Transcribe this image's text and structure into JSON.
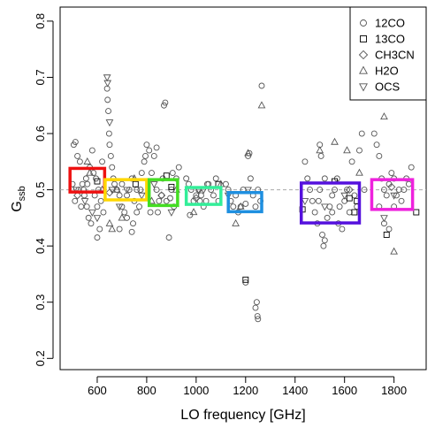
{
  "chart_data": {
    "type": "scatter",
    "xlabel": "LO frequency [GHz]",
    "ylabel_main": "G",
    "ylabel_sub": "ssb",
    "xlim": [
      450,
      1930
    ],
    "ylim": [
      0.18,
      0.825
    ],
    "x_ticks": [
      600,
      800,
      1000,
      1200,
      1400,
      1600,
      1800
    ],
    "y_ticks": [
      0.2,
      0.3,
      0.4,
      0.5,
      0.6,
      0.7,
      0.8
    ],
    "reference_line": 0.5,
    "legend_position": "top-right",
    "legend": [
      {
        "label": "12CO",
        "marker": "circle"
      },
      {
        "label": "13CO",
        "marker": "square"
      },
      {
        "label": "CH3CN",
        "marker": "diamond"
      },
      {
        "label": "H2O",
        "marker": "triangle-up"
      },
      {
        "label": "OCS",
        "marker": "triangle-down"
      }
    ],
    "band_boxes": [
      {
        "color": "#ee1111",
        "x": [
          490,
          630
        ],
        "y": [
          0.496,
          0.538
        ]
      },
      {
        "color": "#ffd700",
        "x": [
          632,
          800
        ],
        "y": [
          0.482,
          0.518
        ]
      },
      {
        "color": "#44dd22",
        "x": [
          810,
          925
        ],
        "y": [
          0.472,
          0.518
        ]
      },
      {
        "color": "#33ee99",
        "x": [
          960,
          1100
        ],
        "y": [
          0.474,
          0.504
        ]
      },
      {
        "color": "#1e8fe0",
        "x": [
          1130,
          1265
        ],
        "y": [
          0.461,
          0.495
        ]
      },
      {
        "color": "#5511dd",
        "x": [
          1425,
          1660
        ],
        "y": [
          0.441,
          0.512
        ]
      },
      {
        "color": "#ee22dd",
        "x": [
          1710,
          1875
        ],
        "y": [
          0.465,
          0.518
        ]
      }
    ],
    "series": [
      {
        "name": "12CO",
        "marker": "circle",
        "points": [
          [
            505,
            0.58
          ],
          [
            512,
            0.585
          ],
          [
            520,
            0.56
          ],
          [
            530,
            0.55
          ],
          [
            540,
            0.51
          ],
          [
            548,
            0.49
          ],
          [
            558,
            0.47
          ],
          [
            565,
            0.45
          ],
          [
            575,
            0.44
          ],
          [
            585,
            0.53
          ],
          [
            595,
            0.52
          ],
          [
            605,
            0.5
          ],
          [
            615,
            0.48
          ],
          [
            625,
            0.46
          ],
          [
            545,
            0.5
          ],
          [
            555,
            0.52
          ],
          [
            570,
            0.54
          ],
          [
            580,
            0.57
          ],
          [
            590,
            0.49
          ],
          [
            600,
            0.47
          ],
          [
            610,
            0.43
          ],
          [
            620,
            0.55
          ],
          [
            500,
            0.51
          ],
          [
            510,
            0.48
          ],
          [
            525,
            0.5
          ],
          [
            535,
            0.47
          ],
          [
            560,
            0.51
          ],
          [
            600,
            0.415
          ],
          [
            640,
            0.68
          ],
          [
            642,
            0.66
          ],
          [
            645,
            0.64
          ],
          [
            648,
            0.6
          ],
          [
            650,
            0.58
          ],
          [
            655,
            0.56
          ],
          [
            660,
            0.54
          ],
          [
            665,
            0.52
          ],
          [
            670,
            0.51
          ],
          [
            680,
            0.5
          ],
          [
            690,
            0.49
          ],
          [
            700,
            0.47
          ],
          [
            710,
            0.46
          ],
          [
            720,
            0.45
          ],
          [
            730,
            0.5
          ],
          [
            740,
            0.52
          ],
          [
            750,
            0.48
          ],
          [
            760,
            0.5
          ],
          [
            770,
            0.47
          ],
          [
            780,
            0.53
          ],
          [
            790,
            0.55
          ],
          [
            700,
            0.51
          ],
          [
            720,
            0.49
          ],
          [
            745,
            0.44
          ],
          [
            760,
            0.46
          ],
          [
            775,
            0.5
          ],
          [
            740,
            0.425
          ],
          [
            690,
            0.43
          ],
          [
            795,
            0.56
          ],
          [
            800,
            0.58
          ],
          [
            810,
            0.57
          ],
          [
            820,
            0.53
          ],
          [
            830,
            0.56
          ],
          [
            840,
            0.5
          ],
          [
            850,
            0.48
          ],
          [
            860,
            0.49
          ],
          [
            870,
            0.65
          ],
          [
            875,
            0.655
          ],
          [
            880,
            0.48
          ],
          [
            890,
            0.415
          ],
          [
            900,
            0.5
          ],
          [
            910,
            0.47
          ],
          [
            920,
            0.52
          ],
          [
            930,
            0.54
          ],
          [
            815,
            0.46
          ],
          [
            845,
            0.46
          ],
          [
            865,
            0.52
          ],
          [
            895,
            0.485
          ],
          [
            905,
            0.53
          ],
          [
            840,
            0.575
          ],
          [
            960,
            0.52
          ],
          [
            970,
            0.51
          ],
          [
            980,
            0.5
          ],
          [
            990,
            0.48
          ],
          [
            1000,
            0.49
          ],
          [
            1010,
            0.5
          ],
          [
            1020,
            0.49
          ],
          [
            1030,
            0.47
          ],
          [
            1040,
            0.48
          ],
          [
            1050,
            0.51
          ],
          [
            1060,
            0.5
          ],
          [
            1070,
            0.49
          ],
          [
            1080,
            0.52
          ],
          [
            1090,
            0.48
          ],
          [
            975,
            0.455
          ],
          [
            1015,
            0.48
          ],
          [
            1045,
            0.51
          ],
          [
            1120,
            0.51
          ],
          [
            1130,
            0.5
          ],
          [
            1140,
            0.48
          ],
          [
            1150,
            0.47
          ],
          [
            1160,
            0.49
          ],
          [
            1170,
            0.46
          ],
          [
            1180,
            0.47
          ],
          [
            1190,
            0.5
          ],
          [
            1200,
            0.475
          ],
          [
            1210,
            0.56
          ],
          [
            1215,
            0.565
          ],
          [
            1220,
            0.52
          ],
          [
            1230,
            0.49
          ],
          [
            1240,
            0.47
          ],
          [
            1250,
            0.5
          ],
          [
            1260,
            0.48
          ],
          [
            1265,
            0.685
          ],
          [
            1240,
            0.29
          ],
          [
            1245,
            0.3
          ],
          [
            1248,
            0.275
          ],
          [
            1250,
            0.27
          ],
          [
            1200,
            0.335
          ],
          [
            1440,
            0.55
          ],
          [
            1450,
            0.52
          ],
          [
            1460,
            0.5
          ],
          [
            1470,
            0.48
          ],
          [
            1480,
            0.46
          ],
          [
            1490,
            0.44
          ],
          [
            1500,
            0.58
          ],
          [
            1505,
            0.56
          ],
          [
            1510,
            0.42
          ],
          [
            1515,
            0.4
          ],
          [
            1520,
            0.41
          ],
          [
            1530,
            0.45
          ],
          [
            1540,
            0.47
          ],
          [
            1550,
            0.49
          ],
          [
            1560,
            0.5
          ],
          [
            1570,
            0.52
          ],
          [
            1580,
            0.47
          ],
          [
            1590,
            0.43
          ],
          [
            1600,
            0.48
          ],
          [
            1610,
            0.5
          ],
          [
            1620,
            0.46
          ],
          [
            1630,
            0.55
          ],
          [
            1640,
            0.49
          ],
          [
            1650,
            0.47
          ],
          [
            1660,
            0.57
          ],
          [
            1670,
            0.6
          ],
          [
            1680,
            0.5
          ],
          [
            1520,
            0.52
          ],
          [
            1550,
            0.46
          ],
          [
            1575,
            0.44
          ],
          [
            1500,
            0.5
          ],
          [
            1495,
            0.48
          ],
          [
            1720,
            0.6
          ],
          [
            1730,
            0.58
          ],
          [
            1740,
            0.56
          ],
          [
            1750,
            0.52
          ],
          [
            1760,
            0.5
          ],
          [
            1770,
            0.49
          ],
          [
            1780,
            0.51
          ],
          [
            1790,
            0.53
          ],
          [
            1800,
            0.52
          ],
          [
            1810,
            0.49
          ],
          [
            1820,
            0.5
          ],
          [
            1830,
            0.48
          ],
          [
            1840,
            0.5
          ],
          [
            1850,
            0.52
          ],
          [
            1860,
            0.51
          ],
          [
            1870,
            0.54
          ],
          [
            1760,
            0.44
          ],
          [
            1780,
            0.43
          ],
          [
            1800,
            0.47
          ],
          [
            1740,
            0.47
          ]
        ]
      },
      {
        "name": "13CO",
        "marker": "square",
        "points": [
          [
            600,
            0.515
          ],
          [
            755,
            0.51
          ],
          [
            880,
            0.525
          ],
          [
            900,
            0.505
          ],
          [
            1090,
            0.51
          ],
          [
            1200,
            0.34
          ],
          [
            1430,
            0.465
          ],
          [
            1560,
            0.515
          ],
          [
            1620,
            0.485
          ],
          [
            1640,
            0.46
          ],
          [
            1650,
            0.48
          ],
          [
            1770,
            0.42
          ],
          [
            1890,
            0.46
          ]
        ]
      },
      {
        "name": "CH3CN",
        "marker": "diamond",
        "points": [
          [
            520,
            0.49
          ],
          [
            650,
            0.495
          ],
          [
            860,
            0.49
          ],
          [
            1000,
            0.485
          ],
          [
            1620,
            0.5
          ],
          [
            1790,
            0.505
          ]
        ]
      },
      {
        "name": "H2O",
        "marker": "triangle-up",
        "points": [
          [
            560,
            0.55
          ],
          [
            570,
            0.53
          ],
          [
            620,
            0.5
          ],
          [
            650,
            0.44
          ],
          [
            660,
            0.43
          ],
          [
            680,
            0.5
          ],
          [
            700,
            0.45
          ],
          [
            750,
            0.52
          ],
          [
            820,
            0.48
          ],
          [
            920,
            0.5
          ],
          [
            990,
            0.46
          ],
          [
            1100,
            0.51
          ],
          [
            1160,
            0.44
          ],
          [
            1180,
            0.47
          ],
          [
            1210,
            0.565
          ],
          [
            1265,
            0.65
          ],
          [
            1500,
            0.57
          ],
          [
            1560,
            0.585
          ],
          [
            1610,
            0.57
          ],
          [
            1660,
            0.53
          ],
          [
            1760,
            0.63
          ],
          [
            1800,
            0.39
          ]
        ]
      },
      {
        "name": "OCS",
        "marker": "triangle-down",
        "points": [
          [
            515,
            0.5
          ],
          [
            550,
            0.48
          ],
          [
            580,
            0.46
          ],
          [
            600,
            0.45
          ],
          [
            640,
            0.7
          ],
          [
            642,
            0.69
          ],
          [
            650,
            0.62
          ],
          [
            660,
            0.5
          ],
          [
            690,
            0.47
          ],
          [
            720,
            0.5
          ],
          [
            780,
            0.49
          ],
          [
            830,
            0.51
          ],
          [
            900,
            0.46
          ],
          [
            1010,
            0.5
          ],
          [
            1030,
            0.5
          ],
          [
            1130,
            0.49
          ],
          [
            1210,
            0.5
          ],
          [
            1440,
            0.48
          ],
          [
            1520,
            0.47
          ],
          [
            1600,
            0.49
          ],
          [
            1760,
            0.45
          ],
          [
            1800,
            0.49
          ]
        ]
      }
    ]
  }
}
